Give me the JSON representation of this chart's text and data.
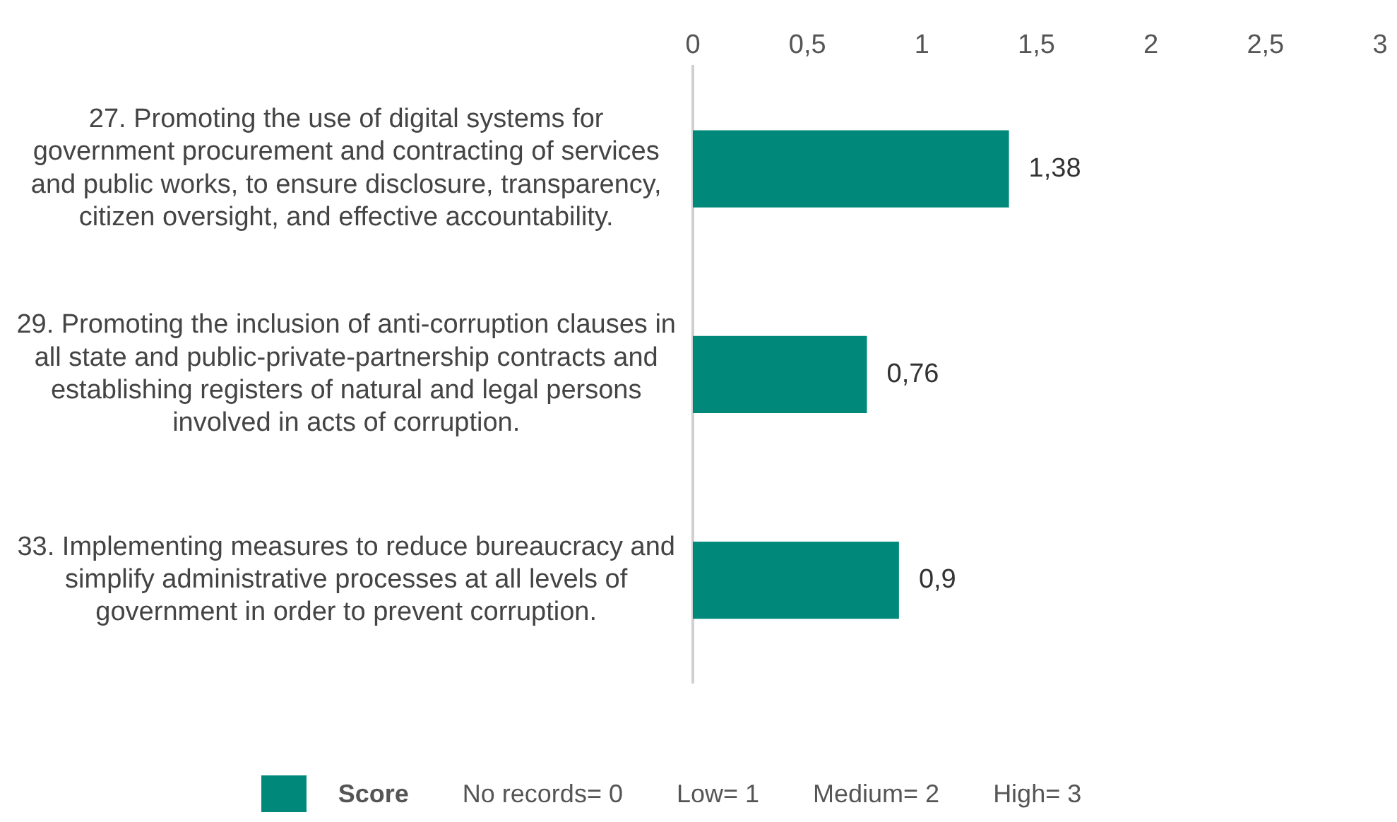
{
  "chart_data": {
    "type": "bar",
    "orientation": "horizontal",
    "categories": [
      "27. Promoting the use of digital systems for government procurement and contracting of services and public works, to ensure disclosure, transparency, citizen oversight, and effective accountability.",
      "29. Promoting the inclusion of anti-corruption clauses in all state and public-private-partnership contracts and establishing registers of natural and legal persons involved in acts of corruption.",
      "33. Implementing measures to reduce bureaucracy and simplify administrative processes at all levels of government in order to prevent corruption."
    ],
    "series": [
      {
        "name": "Score",
        "color": "#00897b",
        "values": [
          1.38,
          0.76,
          0.9
        ],
        "value_labels": [
          "1,38",
          "0,76",
          "0,9"
        ]
      }
    ],
    "xlim": [
      0,
      3
    ],
    "xticks": [
      0,
      {
        "value": 0.5,
        "label": "0,5"
      },
      1,
      {
        "value": 1.5,
        "label": "1,5"
      },
      2,
      {
        "value": 2.5,
        "label": "2,5"
      },
      3
    ],
    "grid": false,
    "legend": "bottom",
    "annotations": [
      "No records= 0",
      "Low= 1",
      "Medium= 2",
      "High= 3"
    ]
  }
}
